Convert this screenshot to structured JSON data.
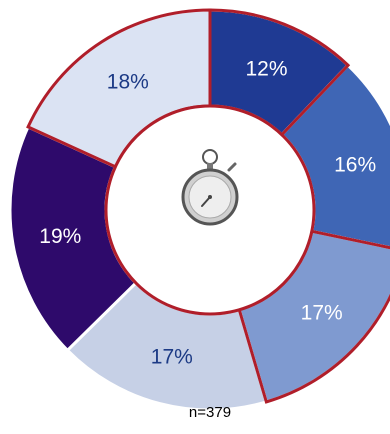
{
  "chart_data": {
    "type": "pie",
    "variant": "donut",
    "center_icon": "stopwatch-icon",
    "slices": [
      {
        "label": "12%",
        "value": 12,
        "color": "#1f3a93",
        "label_color": "#ffffff",
        "outlined": true
      },
      {
        "label": "16%",
        "value": 16,
        "color": "#3f66b5",
        "label_color": "#ffffff",
        "outlined": false
      },
      {
        "label": "17%",
        "value": 17,
        "color": "#7f9ad0",
        "label_color": "#ffffff",
        "outlined": true
      },
      {
        "label": "17%",
        "value": 17,
        "color": "#c6d0e6",
        "label_color": "#1c3a85",
        "outlined": false
      },
      {
        "label": "19%",
        "value": 19,
        "color": "#2e0a6b",
        "label_color": "#ffffff",
        "outlined": false
      },
      {
        "label": "18%",
        "value": 18,
        "color": "#dbe3f3",
        "label_color": "#1c3a85",
        "outlined": true
      }
    ],
    "outline_color": "#b01e2a",
    "footnote": "n=379"
  }
}
